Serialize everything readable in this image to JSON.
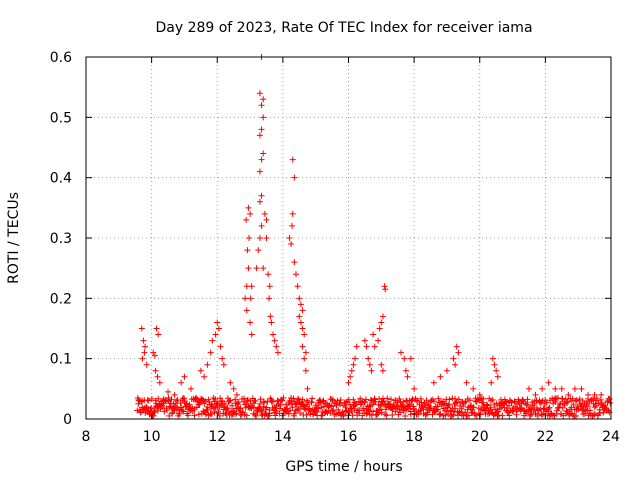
{
  "chart_data": {
    "type": "scatter",
    "title": "Day 289 of 2023, Rate Of TEC Index for receiver iama",
    "xlabel": "GPS time / hours",
    "ylabel": "ROTI / TECUs",
    "xlim": [
      8,
      24
    ],
    "ylim": [
      0,
      0.6
    ],
    "xticks": [
      8,
      10,
      12,
      14,
      16,
      18,
      20,
      22,
      24
    ],
    "yticks": [
      0,
      0.1,
      0.2,
      0.3,
      0.4,
      0.5,
      0.6
    ],
    "grid": true,
    "marker": "plus",
    "color": "#ff0000",
    "series": [
      {
        "points": [
          [
            9.7,
            0.15
          ],
          [
            9.75,
            0.13
          ],
          [
            9.8,
            0.12
          ],
          [
            9.78,
            0.11
          ],
          [
            9.72,
            0.1
          ],
          [
            9.85,
            0.09
          ],
          [
            10.05,
            0.11
          ],
          [
            10.1,
            0.105
          ],
          [
            10.15,
            0.15
          ],
          [
            10.2,
            0.14
          ],
          [
            10.12,
            0.08
          ],
          [
            10.18,
            0.07
          ],
          [
            10.25,
            0.06
          ],
          [
            10.5,
            0.045
          ],
          [
            10.7,
            0.04
          ],
          [
            10.9,
            0.06
          ],
          [
            11.0,
            0.07
          ],
          [
            11.2,
            0.05
          ],
          [
            11.5,
            0.08
          ],
          [
            11.6,
            0.07
          ],
          [
            11.7,
            0.09
          ],
          [
            11.8,
            0.11
          ],
          [
            11.85,
            0.13
          ],
          [
            11.95,
            0.14
          ],
          [
            12.0,
            0.16
          ],
          [
            12.05,
            0.15
          ],
          [
            12.1,
            0.12
          ],
          [
            12.15,
            0.1
          ],
          [
            12.2,
            0.09
          ],
          [
            12.4,
            0.06
          ],
          [
            12.5,
            0.05
          ],
          [
            12.6,
            0.04
          ],
          [
            12.85,
            0.2
          ],
          [
            12.9,
            0.22
          ],
          [
            12.95,
            0.25
          ],
          [
            12.92,
            0.28
          ],
          [
            12.97,
            0.3
          ],
          [
            12.88,
            0.33
          ],
          [
            12.95,
            0.35
          ],
          [
            13.0,
            0.34
          ],
          [
            12.9,
            0.18
          ],
          [
            13.0,
            0.16
          ],
          [
            13.05,
            0.14
          ],
          [
            13.02,
            0.2
          ],
          [
            13.05,
            0.22
          ],
          [
            13.2,
            0.25
          ],
          [
            13.25,
            0.28
          ],
          [
            13.3,
            0.3
          ],
          [
            13.35,
            0.32
          ],
          [
            13.3,
            0.36
          ],
          [
            13.35,
            0.37
          ],
          [
            13.3,
            0.41
          ],
          [
            13.35,
            0.43
          ],
          [
            13.4,
            0.44
          ],
          [
            13.3,
            0.47
          ],
          [
            13.35,
            0.48
          ],
          [
            13.4,
            0.5
          ],
          [
            13.35,
            0.52
          ],
          [
            13.4,
            0.53
          ],
          [
            13.3,
            0.54
          ],
          [
            13.35,
            0.6
          ],
          [
            13.45,
            0.34
          ],
          [
            13.5,
            0.33
          ],
          [
            13.5,
            0.3
          ],
          [
            13.4,
            0.25
          ],
          [
            13.55,
            0.24
          ],
          [
            13.6,
            0.22
          ],
          [
            13.58,
            0.2
          ],
          [
            13.62,
            0.17
          ],
          [
            13.65,
            0.16
          ],
          [
            13.7,
            0.14
          ],
          [
            13.75,
            0.13
          ],
          [
            13.8,
            0.12
          ],
          [
            13.85,
            0.11
          ],
          [
            14.2,
            0.3
          ],
          [
            14.25,
            0.29
          ],
          [
            14.3,
            0.43
          ],
          [
            14.35,
            0.4
          ],
          [
            14.3,
            0.34
          ],
          [
            14.28,
            0.32
          ],
          [
            14.35,
            0.26
          ],
          [
            14.4,
            0.24
          ],
          [
            14.45,
            0.22
          ],
          [
            14.5,
            0.2
          ],
          [
            14.55,
            0.19
          ],
          [
            14.6,
            0.18
          ],
          [
            14.5,
            0.17
          ],
          [
            14.55,
            0.16
          ],
          [
            14.6,
            0.15
          ],
          [
            14.65,
            0.14
          ],
          [
            14.6,
            0.12
          ],
          [
            14.7,
            0.11
          ],
          [
            14.65,
            0.1
          ],
          [
            14.7,
            0.08
          ],
          [
            14.75,
            0.05
          ],
          [
            16.0,
            0.06
          ],
          [
            16.05,
            0.07
          ],
          [
            16.1,
            0.08
          ],
          [
            16.15,
            0.09
          ],
          [
            16.2,
            0.1
          ],
          [
            16.25,
            0.12
          ],
          [
            16.5,
            0.13
          ],
          [
            16.55,
            0.12
          ],
          [
            16.6,
            0.1
          ],
          [
            16.65,
            0.09
          ],
          [
            16.7,
            0.08
          ],
          [
            16.75,
            0.14
          ],
          [
            16.8,
            0.12
          ],
          [
            16.9,
            0.13
          ],
          [
            16.95,
            0.15
          ],
          [
            17.0,
            0.16
          ],
          [
            17.05,
            0.17
          ],
          [
            17.1,
            0.22
          ],
          [
            17.12,
            0.215
          ],
          [
            17.0,
            0.09
          ],
          [
            17.05,
            0.08
          ],
          [
            17.6,
            0.11
          ],
          [
            17.7,
            0.1
          ],
          [
            17.75,
            0.08
          ],
          [
            17.8,
            0.07
          ],
          [
            17.9,
            0.1
          ],
          [
            18.0,
            0.05
          ],
          [
            18.6,
            0.06
          ],
          [
            18.8,
            0.07
          ],
          [
            19.0,
            0.08
          ],
          [
            19.2,
            0.1
          ],
          [
            19.3,
            0.12
          ],
          [
            19.35,
            0.11
          ],
          [
            19.25,
            0.09
          ],
          [
            19.6,
            0.06
          ],
          [
            19.8,
            0.05
          ],
          [
            20.0,
            0.04
          ],
          [
            20.4,
            0.1
          ],
          [
            20.45,
            0.09
          ],
          [
            20.5,
            0.08
          ],
          [
            20.55,
            0.07
          ],
          [
            20.35,
            0.06
          ],
          [
            21.5,
            0.05
          ],
          [
            21.7,
            0.04
          ],
          [
            21.9,
            0.05
          ],
          [
            22.1,
            0.06
          ],
          [
            22.3,
            0.05
          ],
          [
            22.5,
            0.05
          ],
          [
            22.7,
            0.04
          ],
          [
            22.9,
            0.05
          ],
          [
            23.1,
            0.05
          ],
          [
            23.3,
            0.04
          ],
          [
            23.5,
            0.04
          ],
          [
            23.7,
            0.04
          ],
          [
            23.9,
            0.03
          ]
        ],
        "baseline": {
          "x_start": 9.55,
          "x_end": 24.0,
          "y_min": 0.005,
          "y_max": 0.035,
          "count": 900
        }
      }
    ]
  }
}
